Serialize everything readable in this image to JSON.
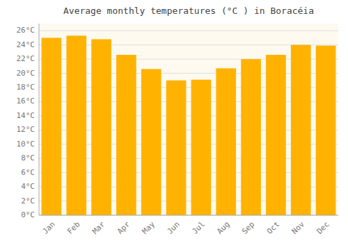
{
  "chart_data": {
    "type": "bar",
    "title": "Average monthly temperatures (°C ) in Boracéia",
    "categories": [
      "Jan",
      "Feb",
      "Mar",
      "Apr",
      "May",
      "Jun",
      "Jul",
      "Aug",
      "Sep",
      "Oct",
      "Nov",
      "Dec"
    ],
    "values": [
      25.0,
      25.3,
      24.8,
      22.6,
      20.6,
      19.0,
      19.1,
      20.7,
      22.0,
      22.6,
      24.0,
      23.9
    ],
    "color": "#FFB300",
    "ylim": [
      0,
      27
    ],
    "yticks": [
      {
        "value": 0,
        "label": "0°C"
      },
      {
        "value": 2,
        "label": "2°C"
      },
      {
        "value": 4,
        "label": "4°C"
      },
      {
        "value": 6,
        "label": "6°C"
      },
      {
        "value": 8,
        "label": "8°C"
      },
      {
        "value": 10,
        "label": "10°C"
      },
      {
        "value": 12,
        "label": "12°C"
      },
      {
        "value": 14,
        "label": "14°C"
      },
      {
        "value": 16,
        "label": "16°C"
      },
      {
        "value": 18,
        "label": "18°C"
      },
      {
        "value": 20,
        "label": "20°C"
      },
      {
        "value": 22,
        "label": "22°C"
      },
      {
        "value": 24,
        "label": "24°C"
      },
      {
        "value": 26,
        "label": "26°C"
      }
    ],
    "grid": true
  }
}
